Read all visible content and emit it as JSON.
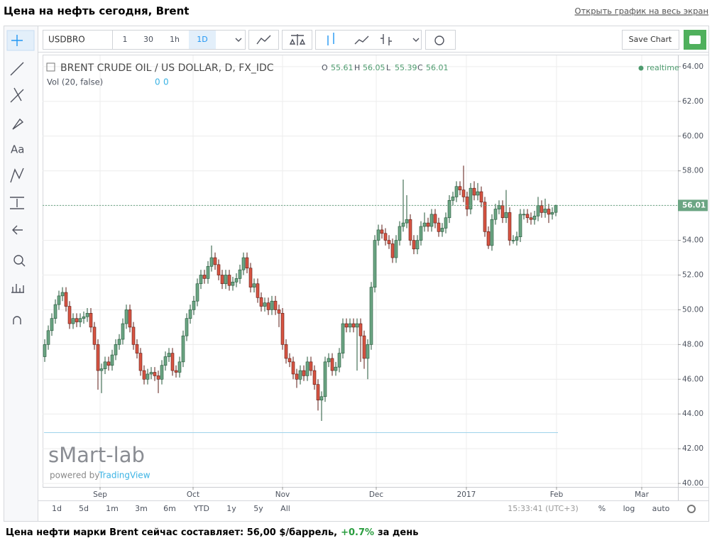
{
  "header": {
    "title": "Цена на нефть сегодня, Brent",
    "link": "Открыть график на весь экран"
  },
  "toolbar": {
    "symbol": "USDBRO",
    "intervals": [
      "1",
      "30",
      "1h",
      "1D"
    ],
    "save": "Save Chart"
  },
  "chart_data": {
    "type": "candlestick",
    "title": "BRENT CRUDE OIL / US DOLLAR, D, FX_IDC",
    "ohlc_letters": [
      "O",
      "H",
      "L",
      "C"
    ],
    "volume_label": "Vol (20, false)",
    "volume_values": [
      0,
      0
    ],
    "status": "realtime",
    "up_color": "#6ba583",
    "down_color": "#d75442",
    "open": [
      47.3,
      48,
      48.8,
      49.5,
      50.3,
      50.8,
      51,
      50.2,
      49.2,
      49.5,
      49.3,
      49.5,
      49.6,
      49.8,
      49,
      48,
      46.5,
      46.6,
      47,
      46.8,
      47.4,
      48,
      48.3,
      49.2,
      50,
      49,
      48,
      47.5,
      46.5,
      46,
      46.3,
      46.4,
      46.2,
      46,
      46.8,
      47.3,
      47.5,
      46.5,
      46.4,
      47,
      48.5,
      49.5,
      50,
      50.5,
      51.5,
      52,
      51.8,
      52.5,
      53,
      52.6,
      52,
      51.5,
      52,
      51.4,
      51.6,
      51.8,
      52.3,
      53,
      52.4,
      51.3,
      51.5,
      50.7,
      50.2,
      50.4,
      50,
      50.5,
      50,
      49.8,
      48,
      47.2,
      47,
      46.3,
      46,
      46.5,
      46.2,
      47,
      46.5,
      45.7,
      44.8,
      45,
      47,
      47.2,
      46.5,
      46.7,
      47.5,
      49.2,
      49,
      49.2,
      49,
      49.2,
      48.5,
      47.2,
      48,
      51.3,
      54,
      54.6,
      54.4,
      54,
      53.8,
      53,
      54,
      54.8,
      55,
      55.2,
      54,
      53.5,
      54,
      54.8,
      55,
      54.8,
      55.5,
      55,
      54.5,
      54.7,
      55.3,
      56.3,
      56.5,
      57.1,
      56.9,
      56.5,
      55.8,
      57,
      56.6,
      56.8,
      56.2,
      54.5,
      53.7,
      55.2,
      55.8,
      56,
      55.3,
      55.6,
      54,
      54,
      54.2,
      55.5,
      55.5,
      55.3,
      55.2,
      55.4,
      56,
      55.6,
      55.8,
      55.5,
      55.61
    ],
    "high": [
      48.3,
      49.1,
      49.8,
      50.6,
      51.1,
      51.3,
      51.3,
      50.5,
      49.8,
      49.8,
      49.8,
      49.9,
      50.1,
      50.1,
      49.3,
      48.3,
      46.9,
      47.3,
      47.3,
      47.7,
      48.3,
      48.6,
      49.5,
      50.3,
      50.3,
      49.3,
      48.3,
      47.8,
      46.8,
      46.6,
      46.7,
      46.7,
      46.5,
      47.1,
      47.6,
      47.8,
      47.8,
      46.8,
      47.3,
      48.8,
      49.8,
      50.3,
      50.8,
      51.8,
      52.3,
      52.3,
      52.8,
      53.7,
      53.3,
      52.9,
      52.3,
      52.3,
      52.3,
      51.9,
      52.1,
      52.6,
      53.3,
      53.3,
      52.7,
      51.8,
      51.8,
      51,
      50.7,
      50.7,
      50.8,
      50.8,
      50.3,
      50.1,
      48.3,
      47.5,
      47.3,
      46.6,
      46.8,
      46.8,
      47.3,
      47.3,
      46.8,
      46,
      45.3,
      47.3,
      47.5,
      47.5,
      47,
      47.8,
      49.5,
      49.5,
      49.5,
      49.5,
      49.5,
      49.5,
      48.8,
      48.3,
      51.6,
      54.3,
      54.9,
      54.9,
      54.7,
      54.3,
      54.1,
      54.3,
      55.1,
      57.5,
      56.6,
      55.5,
      54.3,
      54.3,
      55.1,
      55.6,
      55.3,
      55.8,
      55.8,
      55.3,
      55,
      55.6,
      56.6,
      56.8,
      57.4,
      57.4,
      58.3,
      56.8,
      57.3,
      57.4,
      57.3,
      57.1,
      56.5,
      54.8,
      55.5,
      56.1,
      56.3,
      56.3,
      56.9,
      55.9,
      54.3,
      54.5,
      55.8,
      55.8,
      55.8,
      55.6,
      55.7,
      56.5,
      56.3,
      56.4,
      56.1,
      55.9,
      56.05
    ],
    "low": [
      47,
      47.7,
      48.5,
      49.2,
      50,
      50.5,
      49.9,
      48.9,
      48.9,
      49,
      49,
      49.2,
      49.3,
      48.7,
      47.7,
      45.4,
      45.2,
      46.3,
      46.5,
      46.5,
      47.1,
      47.7,
      48,
      48.9,
      48.7,
      47.7,
      47.2,
      46.2,
      45.7,
      45.7,
      46,
      45.9,
      45.2,
      45.7,
      46.5,
      47,
      46.2,
      46.1,
      46.1,
      46.7,
      48.2,
      49.2,
      49.7,
      50.2,
      51.2,
      51.5,
      51.5,
      52.2,
      52.3,
      51.7,
      51.2,
      51.2,
      51.1,
      51.1,
      51.3,
      51.5,
      52,
      52.1,
      51,
      51,
      50.4,
      49.9,
      49.9,
      49.7,
      49.7,
      49.7,
      49,
      47.7,
      46.9,
      46.7,
      46,
      45.5,
      45.7,
      45.9,
      45.9,
      46.2,
      45.4,
      44.2,
      43.6,
      44.7,
      46.7,
      46.2,
      46.2,
      46.4,
      47.2,
      48.7,
      48.7,
      48.7,
      46.5,
      47,
      46.6,
      46,
      47.7,
      51,
      53.7,
      54.1,
      53.7,
      53.5,
      52.7,
      52.7,
      53.7,
      54.5,
      54.7,
      53.7,
      53.2,
      53.2,
      53.7,
      54.5,
      54.5,
      54.5,
      54.7,
      54.2,
      54.2,
      54.4,
      55,
      56,
      56.2,
      56.6,
      56.2,
      55.4,
      55.5,
      56.3,
      56.3,
      55.9,
      54.2,
      53.5,
      53.4,
      54.9,
      55.5,
      55,
      55,
      53.7,
      53.8,
      53.7,
      53.9,
      55.2,
      55,
      54.9,
      54.9,
      55.1,
      55.3,
      55.3,
      55,
      55.2,
      55.39
    ],
    "close": [
      48,
      48.8,
      49.5,
      50.3,
      50.8,
      51,
      50.2,
      49.2,
      49.5,
      49.3,
      49.5,
      49.6,
      49.8,
      49,
      48,
      46.5,
      46.6,
      47,
      46.8,
      47.4,
      48,
      48.3,
      49.2,
      50,
      49,
      48,
      47.5,
      46.5,
      46,
      46.3,
      46.4,
      46.2,
      46,
      46.8,
      47.3,
      47.5,
      46.5,
      46.4,
      47,
      48.5,
      49.5,
      50,
      50.5,
      51.5,
      52,
      51.8,
      52.5,
      53,
      52.6,
      52,
      51.5,
      52,
      51.4,
      51.6,
      51.8,
      52.3,
      53,
      52.4,
      51.3,
      51.5,
      50.7,
      50.2,
      50.4,
      50,
      50.5,
      50,
      49.8,
      48,
      47.2,
      47,
      46.3,
      46,
      46.5,
      46.2,
      47,
      46.5,
      45.7,
      44.8,
      45,
      47,
      47.2,
      46.5,
      46.7,
      47.5,
      49.2,
      49,
      49.2,
      49,
      49.2,
      48.5,
      47.2,
      48,
      51.3,
      54,
      54.6,
      54.4,
      54,
      53.8,
      53,
      54,
      54.8,
      55,
      55.2,
      54,
      53.5,
      54,
      54.8,
      55,
      54.8,
      55.5,
      55,
      54.5,
      54.7,
      55.3,
      56.3,
      56.5,
      57.1,
      56.9,
      56.5,
      55.8,
      57,
      56.6,
      56.8,
      56.2,
      54.5,
      53.7,
      55.2,
      55.8,
      56,
      55.3,
      55.6,
      54,
      54,
      54.2,
      55.5,
      55.5,
      55.3,
      55.2,
      55.4,
      56,
      55.6,
      55.8,
      55.5,
      55.6,
      56.01
    ],
    "xlim": [
      -0.6,
      178.4
    ],
    "xticks": [
      {
        "value": 15.6,
        "label": "Sep"
      },
      {
        "value": 41.8,
        "label": "Oct"
      },
      {
        "value": 67,
        "label": "Nov"
      },
      {
        "value": 93.4,
        "label": "Dec"
      },
      {
        "value": 118.8,
        "label": "2017"
      },
      {
        "value": 144.2,
        "label": "Feb"
      },
      {
        "value": 168.2,
        "label": "Mar"
      }
    ],
    "ylim": [
      39.8,
      64.65
    ],
    "yticks": [
      {
        "value": 40,
        "label": "40.00"
      },
      {
        "value": 42,
        "label": "42.00"
      },
      {
        "value": 44,
        "label": "44.00"
      },
      {
        "value": 46,
        "label": "46.00"
      },
      {
        "value": 48,
        "label": "48.00"
      },
      {
        "value": 50,
        "label": "50.00"
      },
      {
        "value": 52,
        "label": "52.00"
      },
      {
        "value": 54,
        "label": "54.00"
      },
      {
        "value": 56,
        "label": "56.00"
      },
      {
        "value": 58,
        "label": "58.00"
      },
      {
        "value": 60,
        "label": "60.00"
      },
      {
        "value": 62,
        "label": "62.00"
      },
      {
        "value": 64,
        "label": "64.00"
      }
    ],
    "grid": true,
    "watermark": "sMart-lab",
    "powered_by": "powered by",
    "provider": "TradingView"
  },
  "bottom_bar": {
    "ranges": [
      "1d",
      "5d",
      "1m",
      "3m",
      "6m",
      "YTD",
      "1y",
      "5y",
      "All"
    ],
    "time": "15:33:41 (UTC+3)",
    "scale_options": [
      "%",
      "log",
      "auto"
    ]
  },
  "footer": {
    "text": "Цена нефти марки Brent сейчас составляет: 56,00 $/баррель,",
    "change": "+0.7%",
    "suffix": "за день"
  }
}
